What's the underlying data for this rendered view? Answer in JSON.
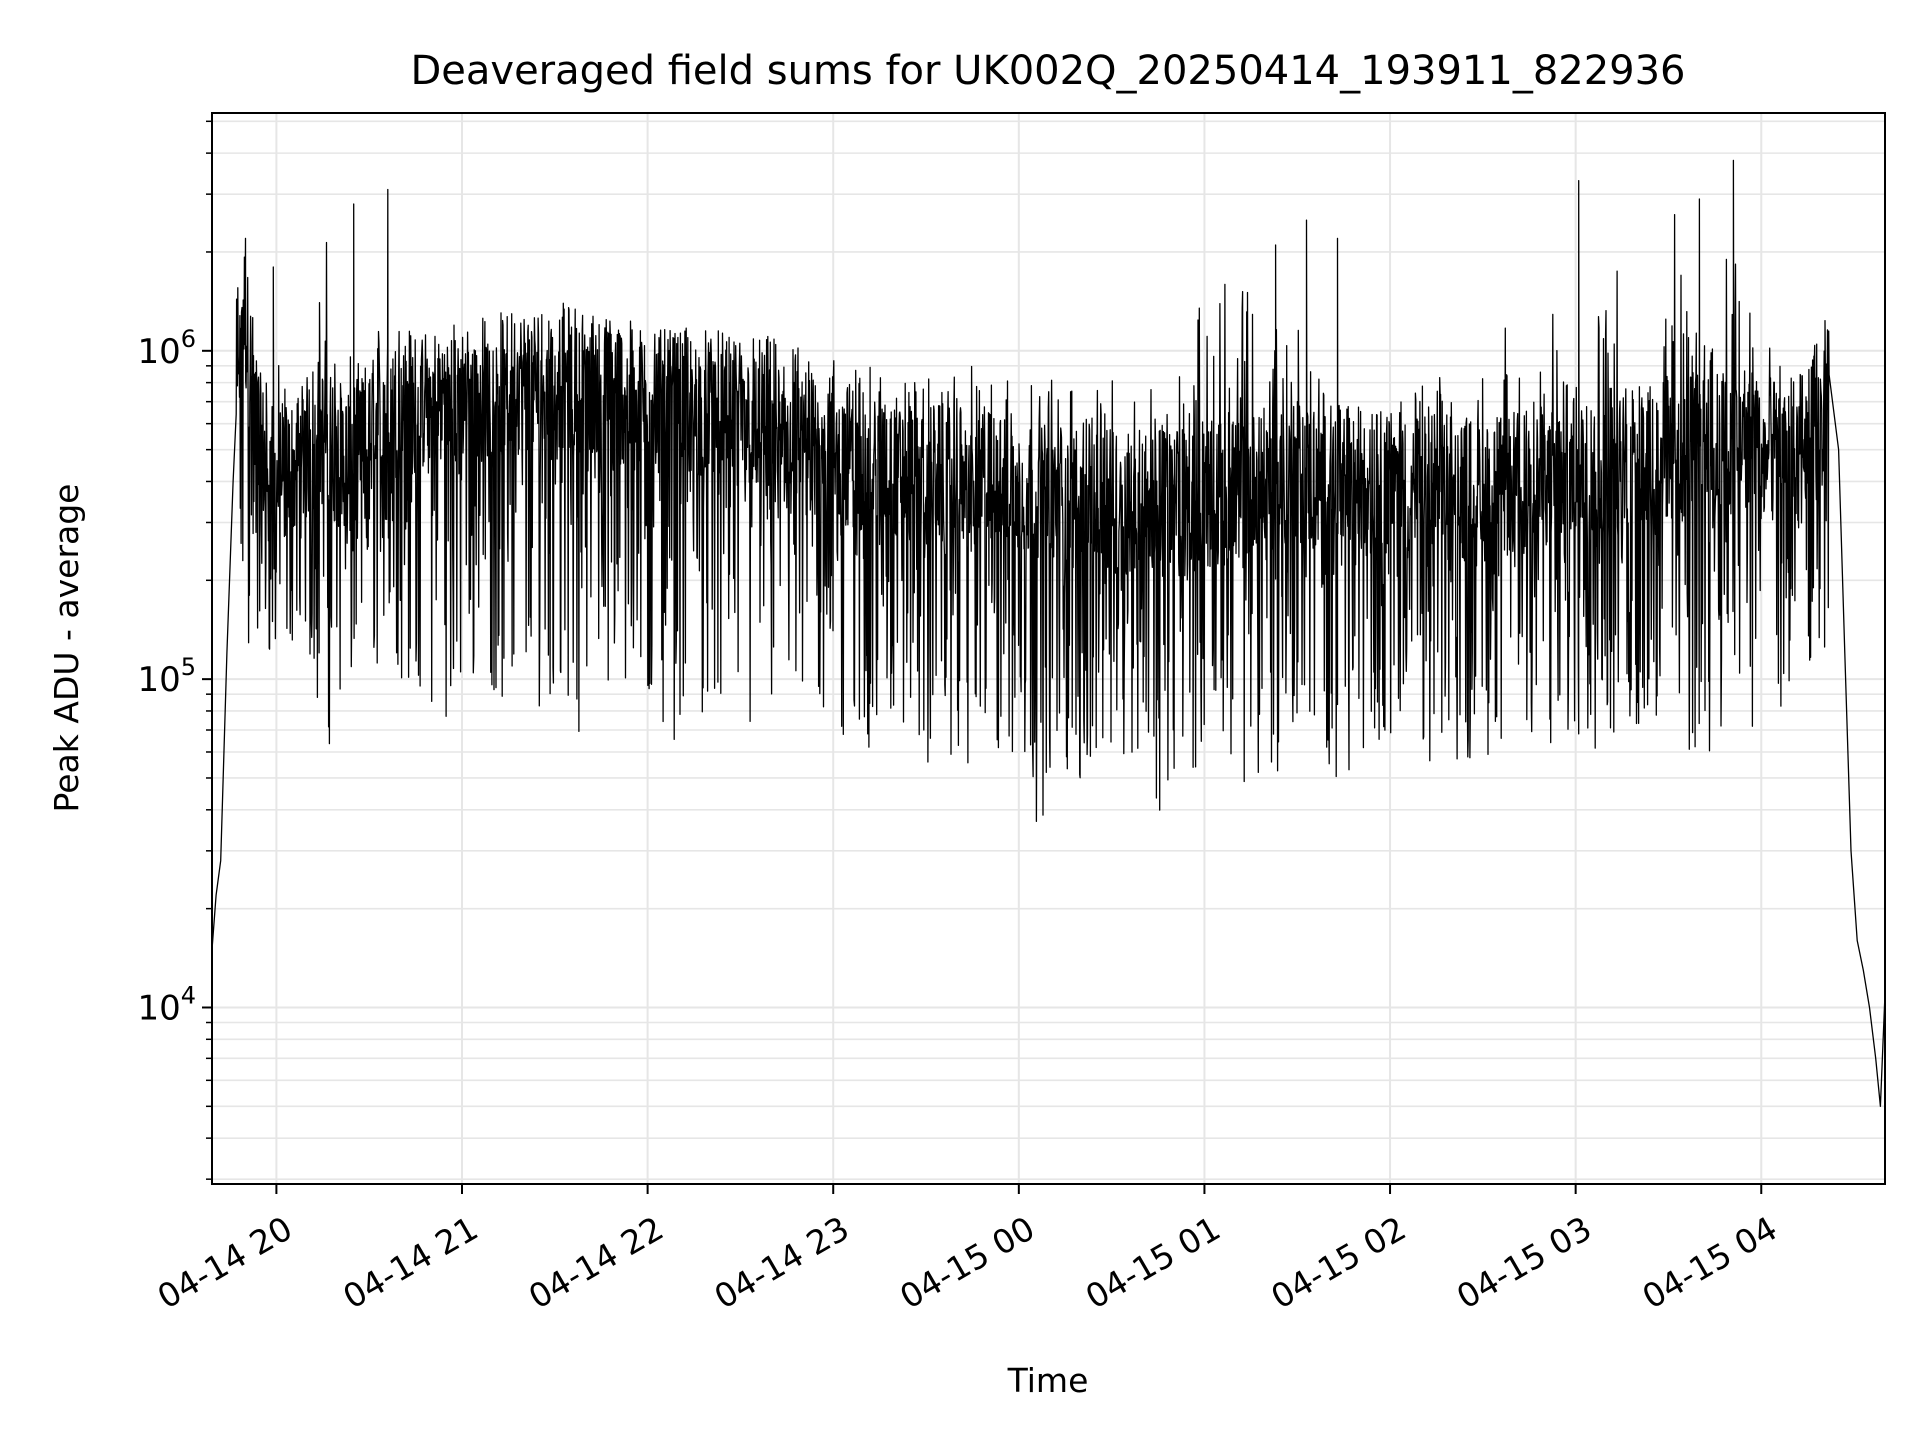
{
  "chart_data": {
    "type": "line",
    "title": "Deaveraged field sums for UK002Q_20250414_193911_822936",
    "xlabel": "Time",
    "ylabel": "Peak ADU - average",
    "y_scale": "log",
    "ylim": [
      2900,
      5300000
    ],
    "xlim": [
      "2025-04-14 19:39:11",
      "2025-04-15 04:40:00"
    ],
    "x_ticks": [
      {
        "time": "2025-04-14 20:00",
        "label": "04-14 20"
      },
      {
        "time": "2025-04-14 21:00",
        "label": "04-14 21"
      },
      {
        "time": "2025-04-14 22:00",
        "label": "04-14 22"
      },
      {
        "time": "2025-04-14 23:00",
        "label": "04-14 23"
      },
      {
        "time": "2025-04-15 00:00",
        "label": "04-15 00"
      },
      {
        "time": "2025-04-15 01:00",
        "label": "04-15 01"
      },
      {
        "time": "2025-04-15 02:00",
        "label": "04-15 02"
      },
      {
        "time": "2025-04-15 03:00",
        "label": "04-15 03"
      },
      {
        "time": "2025-04-15 04:00",
        "label": "04-15 04"
      }
    ],
    "y_ticks": [
      {
        "value": 10000,
        "base": "10",
        "exp": "4"
      },
      {
        "value": 100000,
        "base": "10",
        "exp": "5"
      },
      {
        "value": 1000000,
        "base": "10",
        "exp": "6"
      }
    ],
    "grid": "major and minor",
    "line_color": "#000000",
    "series": [
      {
        "x": [
          "2025-04-14 19:39:11",
          "2025-04-14 19:40:30",
          "2025-04-14 19:42:00",
          "2025-04-14 19:44:00",
          "2025-04-14 19:46:00",
          "2025-04-14 19:47:30",
          "2025-04-14 19:49:00",
          "2025-04-14 19:51:00",
          "2025-04-14 19:53:00",
          "2025-04-14 19:55:00",
          "2025-04-14 19:57:00",
          "2025-04-14 19:59:00",
          "2025-04-14 20:03:00",
          "2025-04-14 20:08:00",
          "2025-04-14 20:13:00",
          "2025-04-14 20:15:00",
          "2025-04-14 20:17:00",
          "2025-04-14 20:22:00",
          "2025-04-14 20:26:00",
          "2025-04-14 20:27:00",
          "2025-04-14 20:28:00",
          "2025-04-14 20:35:00",
          "2025-04-14 20:45:00",
          "2025-04-14 21:00:00",
          "2025-04-14 21:15:00",
          "2025-04-14 21:30:00",
          "2025-04-14 21:45:00",
          "2025-04-14 22:00:00",
          "2025-04-14 22:15:00",
          "2025-04-14 22:30:00",
          "2025-04-14 22:45:00",
          "2025-04-14 23:00:00",
          "2025-04-14 23:30:00",
          "2025-04-15 00:00:00",
          "2025-04-15 00:30:00",
          "2025-04-15 01:00:00",
          "2025-04-15 01:20:00",
          "2025-04-15 01:30:00",
          "2025-04-15 01:50:00",
          "2025-04-15 02:00:00",
          "2025-04-15 02:30:00",
          "2025-04-15 03:00:00",
          "2025-04-15 03:30:00",
          "2025-04-15 03:55:00",
          "2025-04-15 04:10:00",
          "2025-04-15 04:22:00",
          "2025-04-15 04:25:00",
          "2025-04-15 04:27:00",
          "2025-04-15 04:29:00",
          "2025-04-15 04:31:00",
          "2025-04-15 04:33:00",
          "2025-04-15 04:35:00",
          "2025-04-15 04:37:00",
          "2025-04-15 04:38:30",
          "2025-04-15 04:40:00"
        ],
        "y": [
          15000,
          22000,
          28000,
          120000,
          400000,
          1100000,
          1500000,
          1000000,
          700000,
          500000,
          450000,
          400000,
          420000,
          450000,
          600000,
          550000,
          500000,
          480000,
          450000,
          500000,
          520000,
          650000,
          700000,
          750000,
          800000,
          850000,
          800000,
          700000,
          680000,
          650000,
          550000,
          500000,
          420000,
          380000,
          350000,
          360000,
          400000,
          420000,
          400000,
          390000,
          380000,
          420000,
          500000,
          550000,
          480000,
          650000,
          500000,
          120000,
          30000,
          16000,
          13000,
          10000,
          7000,
          5000,
          11000
        ],
        "lows": [
          100000,
          90000,
          120000,
          130000,
          60000,
          80000,
          110000,
          100000,
          90000,
          75000,
          80000,
          100000,
          80000,
          70000,
          90000,
          60000,
          100000,
          70000,
          90000,
          60000,
          70000,
          80000,
          65000,
          60000,
          70000,
          60000,
          80000,
          50000,
          60000,
          60000,
          55000,
          50000,
          60000,
          45000,
          55000,
          40000,
          35000,
          50000,
          45000,
          55000,
          60000,
          35000,
          50000,
          55000,
          60000,
          45000,
          50000,
          55000,
          60000,
          50000,
          55000,
          60000,
          50000,
          55000,
          60000,
          50000,
          60000,
          55000,
          60000,
          55000,
          60000,
          55000,
          50000,
          55000,
          60000,
          55000,
          60000,
          65000,
          70000,
          80000,
          100000,
          120000
        ],
        "highs": [
          1300000,
          1200000,
          1100000,
          1000000,
          3000000,
          1100000,
          1000000,
          3100000,
          1100000,
          1050000,
          1100000,
          1150000,
          1100000,
          1200000,
          1250000,
          1300000,
          1250000,
          1350000,
          1300000,
          1400000,
          1350000,
          1300000,
          1250000,
          1300000,
          1250000,
          1200000,
          1150000,
          1100000,
          1000000,
          1000000,
          950000,
          950000,
          1000000,
          1050000,
          1000000,
          950000,
          1000000,
          950000,
          900000,
          950000,
          1000000,
          900000,
          950000,
          2000000,
          2200000,
          2700000,
          2500000,
          2000000,
          1000000,
          900000,
          850000,
          900000,
          850000,
          900000,
          1000000,
          950000,
          1000000,
          1900000,
          3200000,
          1200000,
          1100000,
          2500000,
          2200000,
          1300000,
          2600000,
          1600000,
          3800000,
          2800000,
          1200000,
          1100000,
          1050000,
          1500000
        ],
        "spikes": [
          {
            "time": "2025-04-14 19:50:00",
            "value": 2200000
          },
          {
            "time": "2025-04-14 19:59:00",
            "value": 1800000
          },
          {
            "time": "2025-04-14 20:25:00",
            "value": 2800000
          },
          {
            "time": "2025-04-14 20:36:00",
            "value": 3100000
          },
          {
            "time": "2025-04-15 01:23:00",
            "value": 2100000
          },
          {
            "time": "2025-04-15 01:33:00",
            "value": 2500000
          },
          {
            "time": "2025-04-15 01:43:00",
            "value": 2200000
          },
          {
            "time": "2025-04-15 03:01:00",
            "value": 3300000
          },
          {
            "time": "2025-04-15 03:32:00",
            "value": 2600000
          },
          {
            "time": "2025-04-15 03:40:00",
            "value": 2900000
          },
          {
            "time": "2025-04-15 03:51:00",
            "value": 3800000
          }
        ]
      }
    ]
  }
}
